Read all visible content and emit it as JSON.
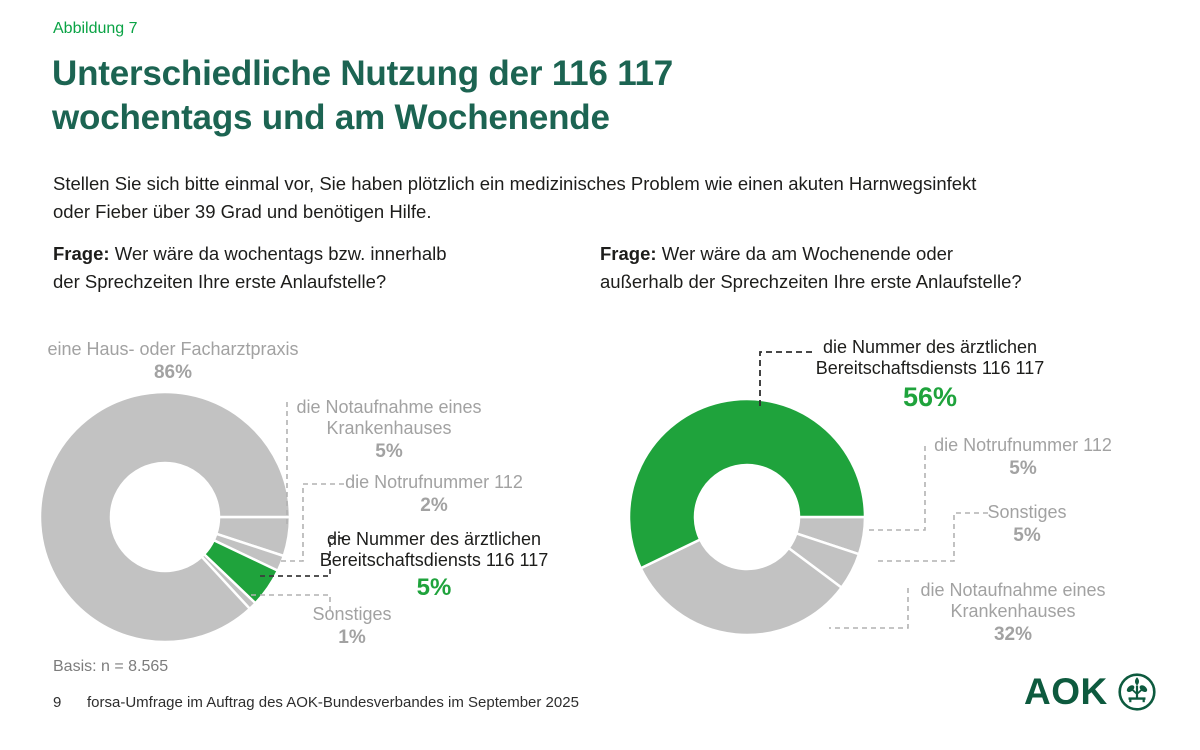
{
  "figure_label": "Abbildung 7",
  "title": {
    "line1": "Unterschiedliche Nutzung der 116 117",
    "line2": "wochentags und am Wochenende"
  },
  "intro": {
    "text": "Stellen Sie sich bitte einmal vor, Sie haben plötzlich ein medizinisches Problem wie einen akuten Harnwegsinfekt oder Fieber über 39 Grad und benötigen Hilfe.",
    "line1": "Stellen Sie sich bitte einmal vor, Sie haben plötzlich ein medizinisches Problem wie einen akuten Harnwegsinfekt",
    "line2": "oder Fieber über 39 Grad und benötigen Hilfe."
  },
  "questions": {
    "left": {
      "prefix": "Frage:",
      "text": "Wer wäre da wochentags bzw. innerhalb der Sprechzeiten Ihre erste Anlaufstelle?",
      "line1": "Wer wäre da wochentags bzw. innerhalb",
      "line2": "der Sprechzeiten Ihre erste Anlaufstelle?"
    },
    "right": {
      "prefix": "Frage:",
      "text": "Wer wäre da am Wochenende oder außerhalb der Sprechzeiten Ihre erste Anlaufstelle?",
      "line1": "Wer wäre da am Wochenende oder",
      "line2": "außerhalb der Sprechzeiten Ihre erste Anlaufstelle?"
    }
  },
  "chart_data": [
    {
      "type": "pie",
      "variant": "donut",
      "title": "Erste Anlaufstelle wochentags bzw. innerhalb der Sprechzeiten",
      "start_angle_deg": 90,
      "direction": "clockwise",
      "legend_position": "callouts",
      "slices": [
        {
          "label": "die Notaufnahme eines Krankenhauses",
          "label_lines": [
            "die Notaufnahme eines",
            "Krankenhauses"
          ],
          "value": 5,
          "pct": "5%",
          "color": "#c2c2c2",
          "emphasis": false
        },
        {
          "label": "die Notrufnummer 112",
          "label_lines": [
            "die Notrufnummer 112"
          ],
          "value": 2,
          "pct": "2%",
          "color": "#c2c2c2",
          "emphasis": false
        },
        {
          "label": "die Nummer des ärztlichen Bereitschaftsdiensts 116 117",
          "label_lines": [
            "die Nummer des ärztlichen",
            "Bereitschaftsdiensts 116 117"
          ],
          "value": 5,
          "pct": "5%",
          "color": "#1fa33c",
          "emphasis": true
        },
        {
          "label": "Sonstiges",
          "label_lines": [
            "Sonstiges"
          ],
          "value": 1,
          "pct": "1%",
          "color": "#c2c2c2",
          "emphasis": false
        },
        {
          "label": "eine Haus- oder Facharztpraxis",
          "label_lines": [
            "eine Haus- oder Facharztpraxis"
          ],
          "value": 86,
          "pct": "86%",
          "color": "#c2c2c2",
          "emphasis": false
        }
      ]
    },
    {
      "type": "pie",
      "variant": "donut",
      "title": "Erste Anlaufstelle am Wochenende oder außerhalb der Sprechzeiten",
      "start_angle_deg": 90,
      "direction": "clockwise",
      "legend_position": "callouts",
      "slices": [
        {
          "label": "die Notrufnummer 112",
          "label_lines": [
            "die Notrufnummer 112"
          ],
          "value": 5,
          "pct": "5%",
          "color": "#c2c2c2",
          "emphasis": false
        },
        {
          "label": "Sonstiges",
          "label_lines": [
            "Sonstiges"
          ],
          "value": 5,
          "pct": "5%",
          "color": "#c2c2c2",
          "emphasis": false
        },
        {
          "label": "die Notaufnahme eines Krankenhauses",
          "label_lines": [
            "die Notaufnahme eines",
            "Krankenhauses"
          ],
          "value": 32,
          "pct": "32%",
          "color": "#c2c2c2",
          "emphasis": false
        },
        {
          "label": "die Nummer des ärztlichen Bereitschaftsdiensts 116 117",
          "label_lines": [
            "die Nummer des ärztlichen",
            "Bereitschaftsdiensts 116 117"
          ],
          "value": 56,
          "pct": "56%",
          "color": "#1fa33c",
          "emphasis": true
        }
      ]
    }
  ],
  "basis": "Basis: n = 8.565",
  "footer": {
    "page_number": "9",
    "source": "forsa-Umfrage im Auftrag des AOK-Bundesverbandes im September 2025"
  },
  "logo": {
    "text": "AOK",
    "emblem": "aok-plant-icon"
  },
  "colors": {
    "accent_green": "#1fa33c",
    "heading_green": "#1c6452",
    "figure_label_green": "#0aa345",
    "slice_gray": "#c2c2c2",
    "label_gray": "#a2a2a2",
    "logo_green": "#0d5a3e"
  }
}
